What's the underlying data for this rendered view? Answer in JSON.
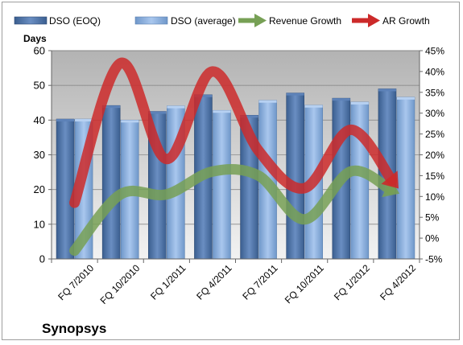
{
  "chart_data": {
    "type": "bar",
    "title": "Synopsys",
    "ylabel": "Days",
    "categories": [
      "FQ 7/2010",
      "FQ 10/2010",
      "FQ 1/2011",
      "FQ 4/2011",
      "FQ 7/2011",
      "FQ 10/2011",
      "FQ 1/2012",
      "FQ 4/2012"
    ],
    "ylim": [
      0,
      60
    ],
    "yticks": [
      0,
      10,
      20,
      30,
      40,
      50,
      60
    ],
    "y2lim": [
      -5,
      45
    ],
    "y2ticks": [
      "-5%",
      "0%",
      "5%",
      "10%",
      "15%",
      "20%",
      "25%",
      "30%",
      "35%",
      "40%",
      "45%"
    ],
    "grid": true,
    "legend_position": "top",
    "bar_series": [
      {
        "name": "DSO (EOQ)",
        "color": "#4a6fa5",
        "values": [
          40.3,
          44.2,
          42.5,
          47.3,
          41.4,
          47.8,
          46.3,
          49.0
        ]
      },
      {
        "name": "DSO (average)",
        "color": "#8db4e2",
        "values": [
          40.3,
          40.0,
          44.1,
          42.8,
          45.7,
          44.3,
          45.2,
          46.6
        ]
      }
    ],
    "line_series": [
      {
        "name": "Revenue Growth",
        "color": "#77a055",
        "axis": "right",
        "values": [
          -3,
          10.5,
          10.5,
          16,
          15,
          4.5,
          16,
          11
        ]
      },
      {
        "name": "AR Growth",
        "color": "#cc2a2a",
        "axis": "right",
        "values": [
          8.5,
          42,
          19,
          40,
          21,
          12,
          26,
          12.5
        ]
      }
    ]
  }
}
